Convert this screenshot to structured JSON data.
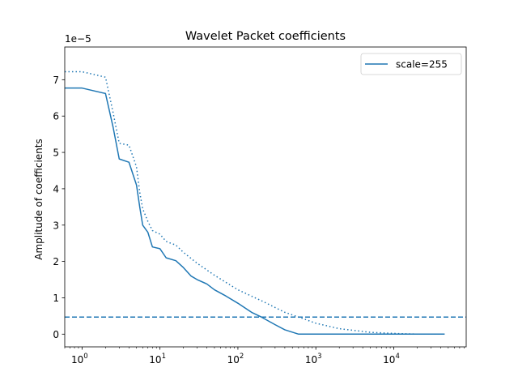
{
  "chart_data": {
    "type": "line",
    "title": "Wavelet Packet coefficients",
    "xlabel": "",
    "ylabel": "Amplitude of coefficients",
    "x_scale": "log",
    "xlim": [
      0.6,
      85000
    ],
    "ylim": [
      -0.35,
      7.9
    ],
    "y_multiplier_label": "1e−5",
    "y_ticks": [
      0,
      1,
      2,
      3,
      4,
      5,
      6,
      7
    ],
    "y_tick_labels": [
      "0",
      "1",
      "2",
      "3",
      "4",
      "5",
      "6",
      "7"
    ],
    "x_ticks": [
      1,
      10,
      100,
      1000,
      10000
    ],
    "x_tick_base": "10",
    "x_tick_exponents": [
      "0",
      "1",
      "2",
      "3",
      "4"
    ],
    "color": "#1f77b4",
    "legend": {
      "position": "top-right",
      "entries": [
        "scale=255"
      ]
    },
    "series": [
      {
        "name": "scale=255",
        "style": "solid",
        "x": [
          0.6,
          1,
          2,
          2.5,
          3,
          4,
          5,
          5.5,
          6,
          7,
          8,
          10,
          12,
          16,
          20,
          25,
          30,
          40,
          50,
          70,
          100,
          150,
          200,
          300,
          400,
          600,
          1000,
          2000,
          10000,
          45000
        ],
        "y": [
          6.77,
          6.77,
          6.62,
          5.7,
          4.82,
          4.73,
          4.1,
          3.5,
          3.0,
          2.8,
          2.4,
          2.35,
          2.1,
          2.02,
          1.83,
          1.6,
          1.5,
          1.38,
          1.22,
          1.05,
          0.85,
          0.6,
          0.47,
          0.26,
          0.12,
          0.0,
          0.0,
          0.0,
          0.0,
          0.0
        ]
      },
      {
        "style": "dotted",
        "x": [
          0.6,
          1,
          2,
          2.5,
          3,
          4,
          5,
          5.5,
          6,
          7,
          8,
          10,
          12,
          16,
          20,
          30,
          50,
          100,
          200,
          400,
          700,
          1000,
          2000,
          5000,
          10000,
          20000,
          45000
        ],
        "y": [
          7.22,
          7.22,
          7.07,
          6.1,
          5.25,
          5.2,
          4.6,
          3.9,
          3.45,
          3.1,
          2.85,
          2.75,
          2.55,
          2.45,
          2.25,
          1.95,
          1.62,
          1.22,
          0.92,
          0.6,
          0.42,
          0.3,
          0.15,
          0.05,
          0.02,
          0.0,
          0.0
        ]
      },
      {
        "style": "dashed",
        "x": [
          0.6,
          85000
        ],
        "y": [
          0.47,
          0.47
        ]
      }
    ]
  }
}
